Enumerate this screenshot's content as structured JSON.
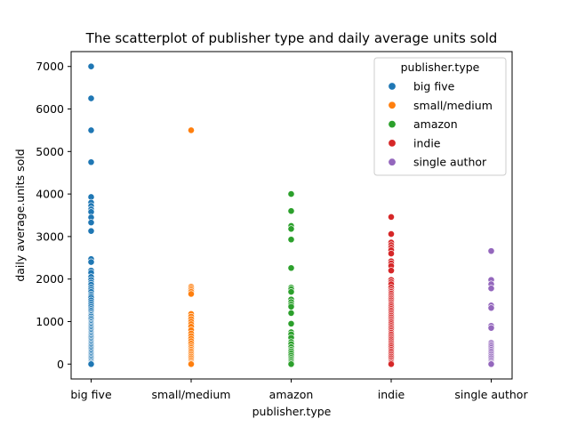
{
  "chart_data": {
    "type": "scatter",
    "title": "The scatterplot of publisher type and daily average units sold",
    "xlabel": "publisher.type",
    "ylabel": "daily average.units sold",
    "categories": [
      "big five",
      "small/medium",
      "amazon",
      "indie",
      "single author"
    ],
    "ylim": [
      -350,
      7350
    ],
    "yticks": [
      0,
      1000,
      2000,
      3000,
      4000,
      5000,
      6000,
      7000
    ],
    "grid": false,
    "legend": {
      "title": "publisher.type",
      "placement": "top-right"
    },
    "series": [
      {
        "name": "big five",
        "color": "#1f77b4",
        "category": "big five",
        "y": [
          7000,
          6250,
          5500,
          4750,
          3930,
          3800,
          3720,
          3640,
          3580,
          3450,
          3330,
          3130,
          2470,
          2400,
          2200,
          2150,
          2050,
          1980,
          1920,
          1870,
          1800,
          1750,
          1700,
          1640,
          1600,
          1560,
          1500,
          1450,
          1400,
          1350,
          1300,
          1260,
          1220,
          1180,
          1150,
          1120,
          1080,
          1050,
          1010,
          980,
          950,
          920,
          890,
          860,
          830,
          800,
          770,
          740,
          710,
          680,
          650,
          620,
          590,
          560,
          530,
          500,
          470,
          440,
          410,
          380,
          350,
          320,
          290,
          260,
          230,
          200,
          170,
          140,
          110,
          80,
          50,
          20,
          0
        ]
      },
      {
        "name": "small/medium",
        "color": "#ff7f0e",
        "category": "small/medium",
        "y": [
          5500,
          1820,
          1780,
          1740,
          1700,
          1650,
          1180,
          1120,
          1060,
          1000,
          940,
          880,
          800,
          720,
          660,
          600,
          540,
          480,
          420,
          380,
          340,
          300,
          260,
          220,
          180,
          140,
          100,
          60,
          20,
          0
        ]
      },
      {
        "name": "amazon",
        "color": "#2ca02c",
        "category": "amazon",
        "y": [
          4000,
          3600,
          3250,
          3180,
          2930,
          2260,
          1800,
          1760,
          1700,
          1520,
          1460,
          1400,
          1350,
          1200,
          950,
          750,
          700,
          620,
          520,
          470,
          400,
          340,
          300,
          250,
          200,
          150,
          110,
          70,
          30,
          0
        ]
      },
      {
        "name": "indie",
        "color": "#d62728",
        "category": "indie",
        "y": [
          3460,
          3060,
          2860,
          2800,
          2740,
          2680,
          2600,
          2420,
          2370,
          2310,
          2200,
          1980,
          1930,
          1880,
          1800,
          1740,
          1700,
          1660,
          1620,
          1580,
          1540,
          1500,
          1460,
          1420,
          1380,
          1340,
          1300,
          1260,
          1220,
          1180,
          1140,
          1100,
          1060,
          1020,
          980,
          940,
          900,
          860,
          820,
          780,
          740,
          700,
          660,
          620,
          580,
          540,
          500,
          460,
          420,
          380,
          340,
          300,
          260,
          220,
          180,
          140,
          100,
          60,
          30,
          0
        ]
      },
      {
        "name": "single author",
        "color": "#9467bd",
        "category": "single author",
        "y": [
          2660,
          1980,
          1880,
          1780,
          1380,
          1320,
          900,
          850,
          500,
          460,
          420,
          380,
          340,
          300,
          260,
          220,
          180,
          140,
          100,
          60,
          20,
          0
        ]
      }
    ]
  }
}
